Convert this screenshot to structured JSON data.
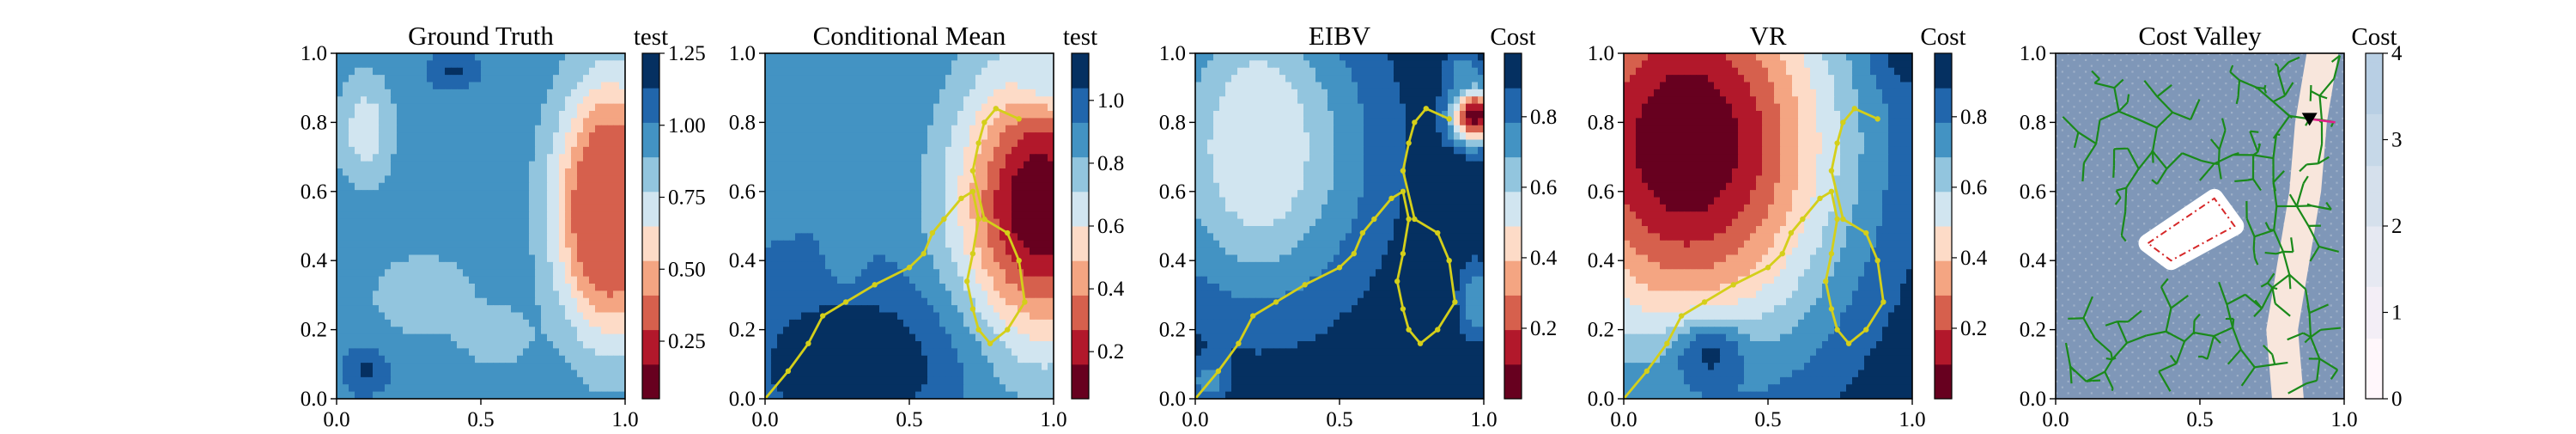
{
  "chart_data": [
    {
      "type": "heatmap",
      "title": "Ground Truth",
      "colorbar_label": "test",
      "colorbar_ticks": [
        "0.25",
        "0.50",
        "0.75",
        "1.00",
        "1.25"
      ],
      "colorbar_range": [
        0.05,
        1.25
      ],
      "colormap": "RdBu",
      "x_ticks": [
        "0.0",
        "0.5",
        "1.0"
      ],
      "y_ticks": [
        "0.0",
        "0.2",
        "0.4",
        "0.6",
        "0.8",
        "1.0"
      ],
      "xlim": [
        0,
        1
      ],
      "ylim": [
        0,
        1
      ],
      "background_value": 0.97,
      "field": [
        {
          "x": 0.95,
          "y": 0.55,
          "v": 0.05,
          "rx": 0.18,
          "ry": 0.34
        },
        {
          "x": 0.95,
          "y": 0.55,
          "v": 0.35,
          "rx": 0.11,
          "ry": 0.22
        },
        {
          "x": 0.1,
          "y": 0.78,
          "v": 0.7,
          "rx": 0.1,
          "ry": 0.16
        },
        {
          "x": 0.3,
          "y": 0.3,
          "v": 0.78,
          "rx": 0.18,
          "ry": 0.12
        },
        {
          "x": 0.55,
          "y": 0.18,
          "v": 0.82,
          "rx": 0.14,
          "ry": 0.1
        },
        {
          "x": 0.4,
          "y": 0.95,
          "v": 1.15,
          "rx": 0.08,
          "ry": 0.05
        },
        {
          "x": 0.1,
          "y": 0.08,
          "v": 1.15,
          "rx": 0.07,
          "ry": 0.06
        }
      ],
      "trajectory": []
    },
    {
      "type": "heatmap",
      "title": "Conditional Mean",
      "colorbar_label": "test",
      "colorbar_ticks": [
        "0.2",
        "0.4",
        "0.6",
        "0.8",
        "1.0"
      ],
      "colorbar_range": [
        0.05,
        1.15
      ],
      "colormap": "RdBu",
      "x_ticks": [
        "0.0",
        "0.5",
        "1.0"
      ],
      "y_ticks": [
        "0.0",
        "0.2",
        "0.4",
        "0.6",
        "0.8",
        "1.0"
      ],
      "xlim": [
        0,
        1
      ],
      "ylim": [
        0,
        1
      ],
      "background_value": 0.92,
      "field": [
        {
          "x": 0.95,
          "y": 0.56,
          "v": 0.05,
          "rx": 0.28,
          "ry": 0.4
        },
        {
          "x": 0.3,
          "y": 0.1,
          "v": 1.15,
          "rx": 0.35,
          "ry": 0.22
        },
        {
          "x": 0.28,
          "y": 0.42,
          "v": 0.82,
          "rx": 0.06,
          "ry": 0.09
        },
        {
          "x": 1.0,
          "y": 0.95,
          "v": 0.7,
          "rx": 0.14,
          "ry": 0.1
        }
      ],
      "trajectory": [
        [
          0.0,
          0.0
        ],
        [
          0.08,
          0.08
        ],
        [
          0.15,
          0.16
        ],
        [
          0.2,
          0.24
        ],
        [
          0.28,
          0.28
        ],
        [
          0.38,
          0.33
        ],
        [
          0.5,
          0.38
        ],
        [
          0.55,
          0.42
        ],
        [
          0.58,
          0.48
        ],
        [
          0.62,
          0.52
        ],
        [
          0.68,
          0.58
        ],
        [
          0.72,
          0.6
        ],
        [
          0.74,
          0.52
        ],
        [
          0.72,
          0.42
        ],
        [
          0.7,
          0.34
        ],
        [
          0.72,
          0.26
        ],
        [
          0.74,
          0.2
        ],
        [
          0.78,
          0.16
        ],
        [
          0.84,
          0.2
        ],
        [
          0.9,
          0.28
        ],
        [
          0.88,
          0.4
        ],
        [
          0.84,
          0.48
        ],
        [
          0.76,
          0.52
        ],
        [
          0.72,
          0.66
        ],
        [
          0.74,
          0.74
        ],
        [
          0.76,
          0.8
        ],
        [
          0.8,
          0.84
        ],
        [
          0.88,
          0.81
        ]
      ]
    },
    {
      "type": "heatmap",
      "title": "EIBV",
      "colorbar_label": "Cost",
      "colorbar_ticks": [
        "0.2",
        "0.4",
        "0.6",
        "0.8"
      ],
      "colorbar_range": [
        0.0,
        0.98
      ],
      "colormap": "RdBu",
      "x_ticks": [
        "0.0",
        "0.5",
        "1.0"
      ],
      "y_ticks": [
        "0.0",
        "0.2",
        "0.4",
        "0.6",
        "0.8",
        "1.0"
      ],
      "xlim": [
        0,
        1
      ],
      "ylim": [
        0,
        1
      ],
      "background_value": 0.98,
      "field": [
        {
          "x": 0.22,
          "y": 0.72,
          "v": 0.55,
          "rx": 0.42,
          "ry": 0.48
        },
        {
          "x": 0.22,
          "y": 0.75,
          "v": 0.5,
          "rx": 0.14,
          "ry": 0.24
        },
        {
          "x": 0.97,
          "y": 0.82,
          "v": 0.02,
          "rx": 0.08,
          "ry": 0.08
        },
        {
          "x": 0.98,
          "y": 0.28,
          "v": 0.7,
          "rx": 0.07,
          "ry": 0.12
        },
        {
          "x": 0.93,
          "y": 0.95,
          "v": 0.7,
          "rx": 0.06,
          "ry": 0.05
        },
        {
          "x": 0.05,
          "y": 0.05,
          "v": 0.7,
          "rx": 0.06,
          "ry": 0.06
        }
      ],
      "trajectory": [
        [
          0.0,
          0.0
        ],
        [
          0.08,
          0.08
        ],
        [
          0.15,
          0.16
        ],
        [
          0.2,
          0.24
        ],
        [
          0.28,
          0.28
        ],
        [
          0.38,
          0.33
        ],
        [
          0.5,
          0.38
        ],
        [
          0.55,
          0.42
        ],
        [
          0.58,
          0.48
        ],
        [
          0.62,
          0.52
        ],
        [
          0.68,
          0.58
        ],
        [
          0.72,
          0.6
        ],
        [
          0.74,
          0.52
        ],
        [
          0.72,
          0.42
        ],
        [
          0.7,
          0.34
        ],
        [
          0.72,
          0.26
        ],
        [
          0.74,
          0.2
        ],
        [
          0.78,
          0.16
        ],
        [
          0.84,
          0.2
        ],
        [
          0.9,
          0.28
        ],
        [
          0.88,
          0.4
        ],
        [
          0.84,
          0.48
        ],
        [
          0.76,
          0.52
        ],
        [
          0.72,
          0.66
        ],
        [
          0.74,
          0.74
        ],
        [
          0.76,
          0.8
        ],
        [
          0.8,
          0.84
        ],
        [
          0.88,
          0.81
        ]
      ]
    },
    {
      "type": "heatmap",
      "title": "VR",
      "colorbar_label": "Cost",
      "colorbar_ticks": [
        "0.2",
        "0.4",
        "0.6",
        "0.8"
      ],
      "colorbar_range": [
        0.0,
        0.98
      ],
      "colormap": "RdBu",
      "x_ticks": [
        "0.0",
        "0.5",
        "1.0"
      ],
      "y_ticks": [
        "0.0",
        "0.2",
        "0.4",
        "0.6",
        "0.8",
        "1.0"
      ],
      "xlim": [
        0,
        1
      ],
      "ylim": [
        0,
        1
      ],
      "background_value": 0.98,
      "field": [
        {
          "x": 0.22,
          "y": 0.74,
          "v": 0.0,
          "rx": 0.55,
          "ry": 0.62
        },
        {
          "x": 0.3,
          "y": 0.12,
          "v": 0.9,
          "rx": 0.14,
          "ry": 0.1
        },
        {
          "x": 0.98,
          "y": 0.98,
          "v": 0.92,
          "rx": 0.1,
          "ry": 0.08
        }
      ],
      "trajectory": [
        [
          0.0,
          0.0
        ],
        [
          0.08,
          0.08
        ],
        [
          0.15,
          0.16
        ],
        [
          0.2,
          0.24
        ],
        [
          0.28,
          0.28
        ],
        [
          0.38,
          0.33
        ],
        [
          0.5,
          0.38
        ],
        [
          0.55,
          0.42
        ],
        [
          0.58,
          0.48
        ],
        [
          0.62,
          0.52
        ],
        [
          0.68,
          0.58
        ],
        [
          0.72,
          0.6
        ],
        [
          0.74,
          0.52
        ],
        [
          0.72,
          0.42
        ],
        [
          0.7,
          0.34
        ],
        [
          0.72,
          0.26
        ],
        [
          0.74,
          0.2
        ],
        [
          0.78,
          0.16
        ],
        [
          0.84,
          0.2
        ],
        [
          0.9,
          0.28
        ],
        [
          0.88,
          0.4
        ],
        [
          0.84,
          0.48
        ],
        [
          0.76,
          0.52
        ],
        [
          0.72,
          0.66
        ],
        [
          0.74,
          0.74
        ],
        [
          0.76,
          0.8
        ],
        [
          0.8,
          0.84
        ],
        [
          0.88,
          0.81
        ]
      ]
    },
    {
      "type": "heatmap",
      "title": "Cost Valley",
      "colorbar_label": "Cost",
      "colorbar_ticks": [
        "0",
        "1",
        "2",
        "3",
        "4"
      ],
      "colorbar_range": [
        0,
        4
      ],
      "colormap": "PuBu",
      "x_ticks": [
        "0.0",
        "0.5",
        "1.0"
      ],
      "y_ticks": [
        "0.0",
        "0.2",
        "0.4",
        "0.6",
        "0.8",
        "1.0"
      ],
      "xlim": [
        0,
        1
      ],
      "ylim": [
        0,
        1
      ],
      "background_value": 3.7,
      "valley": [
        [
          0.8,
          0.0
        ],
        [
          0.78,
          0.2
        ],
        [
          0.82,
          0.4
        ],
        [
          0.86,
          0.6
        ],
        [
          0.88,
          0.8
        ],
        [
          0.92,
          1.0
        ]
      ],
      "obstacle": [
        [
          0.32,
          0.45
        ],
        [
          0.55,
          0.58
        ],
        [
          0.62,
          0.5
        ],
        [
          0.4,
          0.4
        ]
      ],
      "start_point": [
        0.88,
        0.81
      ],
      "tree_color": "#1a8a1a",
      "obstacle_color": "#d62728"
    }
  ]
}
